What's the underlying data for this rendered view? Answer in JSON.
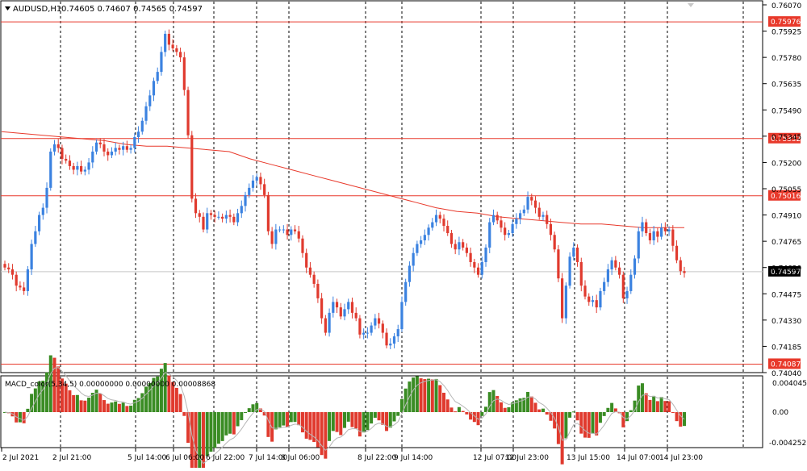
{
  "header": {
    "symbol_label": "AUDUSD,H1",
    "ohlc_text": "0.74605 0.74607 0.74565 0.74597",
    "menu_icon": "triangle-down-icon"
  },
  "colors": {
    "bull": "#3b82e0",
    "bear": "#e03a2e",
    "hline": "#e8392b",
    "ma": "#e8392b",
    "macd_up": "#3a8c24",
    "macd_down": "#e03a2e",
    "signal": "#b5b5b5",
    "grid": "#000000",
    "price_tag_bg": "#000000"
  },
  "price_axis": {
    "labels": [
      "0.76070",
      "0.75925",
      "0.75780",
      "0.75635",
      "0.75490",
      "0.75345",
      "0.75200",
      "0.75055",
      "0.74910",
      "0.74765",
      "0.74620",
      "0.74475",
      "0.74330",
      "0.74185",
      "0.74040"
    ],
    "min": 0.7404,
    "max": 0.7607
  },
  "levels": [
    {
      "price": 0.75976,
      "label": "0.75976"
    },
    {
      "price": 0.75332,
      "label": "0.75332"
    },
    {
      "price": 0.75016,
      "label": "0.75016"
    },
    {
      "price": 0.74087,
      "label": "0.74087"
    }
  ],
  "current_price": {
    "price": 0.74597,
    "label": "0.74597"
  },
  "time_axis": [
    "2 Jul 2021",
    "2 Jul 21:00",
    "5 Jul 14:00",
    "6 Jul 06:00",
    "6 Jul 22:00",
    "7 Jul 14:00",
    "8 Jul 06:00",
    "8 Jul 22:00",
    "9 Jul 14:00",
    "12 Jul 07:00",
    "12 Jul 23:00",
    "13 Jul 15:00",
    "14 Jul 07:00",
    "14 Jul 23:00"
  ],
  "macd": {
    "label": "MACD_color(5,34,5) 0.00000000 0.00000000 0.00008868",
    "axis_labels": [
      "0.0040457",
      "0.00",
      "-0.004252"
    ],
    "max": 0.0040457,
    "min": -0.004252
  },
  "chart_data": {
    "type": "candlestick",
    "series": [
      {
        "name": "AUDUSD,H1",
        "close": [
          0.7462,
          0.7461,
          0.7458,
          0.7452,
          0.7451,
          0.7449,
          0.7461,
          0.7475,
          0.7482,
          0.7491,
          0.7495,
          0.7506,
          0.7526,
          0.753,
          0.7528,
          0.7522,
          0.7521,
          0.7518,
          0.7516,
          0.7518,
          0.7515,
          0.7516,
          0.752,
          0.7526,
          0.7531,
          0.753,
          0.7526,
          0.7524,
          0.7526,
          0.7528,
          0.7527,
          0.7529,
          0.7527,
          0.7528,
          0.7534,
          0.7537,
          0.7543,
          0.7551,
          0.7557,
          0.7565,
          0.757,
          0.7581,
          0.7591,
          0.7585,
          0.7583,
          0.7581,
          0.7578,
          0.756,
          0.7535,
          0.75,
          0.7492,
          0.749,
          0.7483,
          0.7492,
          0.7491,
          0.749,
          0.749,
          0.7489,
          0.7491,
          0.749,
          0.7487,
          0.7492,
          0.7496,
          0.7502,
          0.7506,
          0.751,
          0.7512,
          0.7508,
          0.7502,
          0.7482,
          0.7475,
          0.7483,
          0.7483,
          0.7483,
          0.748,
          0.7483,
          0.7482,
          0.7478,
          0.747,
          0.7462,
          0.7458,
          0.7453,
          0.7445,
          0.7434,
          0.7426,
          0.7437,
          0.7443,
          0.744,
          0.7435,
          0.7439,
          0.7443,
          0.7437,
          0.7434,
          0.7425,
          0.7426,
          0.7426,
          0.743,
          0.7434,
          0.7431,
          0.7426,
          0.7419,
          0.742,
          0.7424,
          0.7428,
          0.7443,
          0.7454,
          0.7463,
          0.747,
          0.7475,
          0.7477,
          0.748,
          0.7484,
          0.7487,
          0.7491,
          0.7489,
          0.7485,
          0.7481,
          0.7475,
          0.7472,
          0.7476,
          0.7473,
          0.747,
          0.7465,
          0.7462,
          0.7458,
          0.7465,
          0.7473,
          0.7487,
          0.7491,
          0.7488,
          0.7484,
          0.748,
          0.7481,
          0.7486,
          0.7489,
          0.7492,
          0.7494,
          0.7501,
          0.7499,
          0.7495,
          0.749,
          0.7491,
          0.7486,
          0.748,
          0.7472,
          0.7456,
          0.7434,
          0.7452,
          0.7468,
          0.7473,
          0.7465,
          0.7452,
          0.7446,
          0.7443,
          0.7444,
          0.744,
          0.7449,
          0.7454,
          0.7461,
          0.7466,
          0.7462,
          0.7458,
          0.7445,
          0.7449,
          0.7458,
          0.7467,
          0.7482,
          0.7487,
          0.7481,
          0.7477,
          0.7482,
          0.7479,
          0.7484,
          0.7482,
          0.7483,
          0.7474,
          0.7466,
          0.746,
          0.7459
        ]
      },
      {
        "name": "MA",
        "values": [
          0.7537,
          0.7536,
          0.7535,
          0.7534,
          0.7533,
          0.7532,
          0.753,
          0.7529,
          0.7529,
          0.7528,
          0.7527,
          0.7526,
          0.7522,
          0.7519,
          0.7516,
          0.7513,
          0.751,
          0.7507,
          0.7504,
          0.7501,
          0.7498,
          0.7495,
          0.7493,
          0.7492,
          0.749,
          0.7489,
          0.7488,
          0.7487,
          0.7486,
          0.7486,
          0.7485,
          0.7484,
          0.7484,
          0.7484
        ]
      }
    ],
    "ylim": [
      0.7404,
      0.7607
    ]
  }
}
